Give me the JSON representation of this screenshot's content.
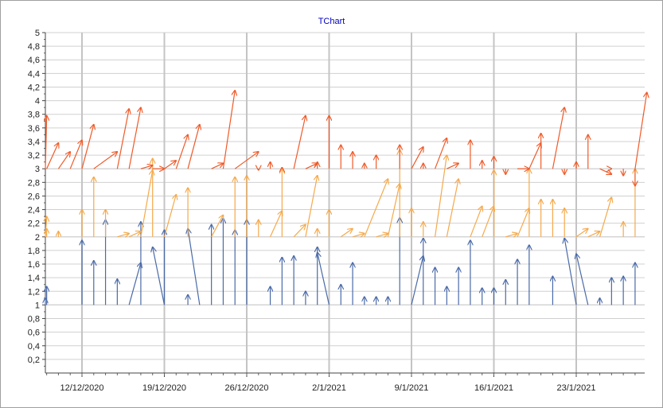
{
  "chart_data": {
    "type": "vector-arrows",
    "title": "TChart",
    "xlabel": "",
    "ylabel": "",
    "ylim": [
      0,
      5
    ],
    "y_ticks": [
      "0,2",
      "0,4",
      "0,6",
      "0,8",
      "1",
      "1,2",
      "1,4",
      "1,6",
      "1,8",
      "2",
      "2,2",
      "2,4",
      "2,6",
      "2,8",
      "3",
      "3,2",
      "3,4",
      "3,6",
      "3,8",
      "4",
      "4,2",
      "4,4",
      "4,6",
      "4,8",
      "5"
    ],
    "xlim": [
      "2020-12-08",
      "2021-01-26"
    ],
    "x_ticks": [
      {
        "date": "2020-12-12",
        "label": "12/12/2020"
      },
      {
        "date": "2020-12-19",
        "label": "19/12/2020"
      },
      {
        "date": "2020-12-26",
        "label": "26/12/2020"
      },
      {
        "date": "2021-01-02",
        "label": "2/1/2021"
      },
      {
        "date": "2021-01-09",
        "label": "9/1/2021"
      },
      {
        "date": "2021-01-16",
        "label": "16/1/2021"
      },
      {
        "date": "2021-01-23",
        "label": "23/1/2021"
      }
    ],
    "grid": true,
    "legend": "none",
    "series": [
      {
        "color": "#4a6aa8",
        "baseline": 1,
        "arrows": [
          [
            "2020-12-08",
            "2020-12-08",
            1.1
          ],
          [
            "2020-12-09",
            "2020-12-09",
            1.27
          ],
          [
            "2020-12-12",
            "2020-12-12",
            1.95
          ],
          [
            "2020-12-13",
            "2020-12-13",
            1.65
          ],
          [
            "2020-12-14",
            "2020-12-14",
            2.25
          ],
          [
            "2020-12-15",
            "2020-12-15",
            1.38
          ],
          [
            "2020-12-16",
            "2020-12-17",
            1.62
          ],
          [
            "2020-12-17",
            "2020-12-17",
            2.22
          ],
          [
            "2020-12-19",
            "2020-12-18",
            1.85
          ],
          [
            "2020-12-19",
            "2020-12-19",
            2.1
          ],
          [
            "2020-12-21",
            "2020-12-21",
            1.15
          ],
          [
            "2020-12-22",
            "2020-12-21",
            2.12
          ],
          [
            "2020-12-23",
            "2020-12-23",
            2.18
          ],
          [
            "2020-12-24",
            "2020-12-24",
            2.27
          ],
          [
            "2020-12-25",
            "2020-12-25",
            2.1
          ],
          [
            "2020-12-26",
            "2020-12-26",
            2.25
          ],
          [
            "2020-12-28",
            "2020-12-28",
            1.27
          ],
          [
            "2020-12-29",
            "2020-12-29",
            1.7
          ],
          [
            "2020-12-30",
            "2020-12-30",
            1.72
          ],
          [
            "2020-12-31",
            "2020-12-31",
            1.2
          ],
          [
            "2021-01-01",
            "2021-01-01",
            1.85
          ],
          [
            "2021-01-02",
            "2021-01-01",
            1.77
          ],
          [
            "2021-01-03",
            "2021-01-03",
            1.3
          ],
          [
            "2021-01-04",
            "2021-01-04",
            1.62
          ],
          [
            "2021-01-05",
            "2021-01-05",
            1.12
          ],
          [
            "2021-01-06",
            "2021-01-06",
            1.12
          ],
          [
            "2021-01-07",
            "2021-01-07",
            1.12
          ],
          [
            "2021-01-08",
            "2021-01-08",
            2.28
          ],
          [
            "2021-01-09",
            "2021-01-10",
            1.72
          ],
          [
            "2021-01-10",
            "2021-01-10",
            1.98
          ],
          [
            "2021-01-11",
            "2021-01-11",
            1.55
          ],
          [
            "2021-01-12",
            "2021-01-12",
            1.27
          ],
          [
            "2021-01-13",
            "2021-01-13",
            1.55
          ],
          [
            "2021-01-14",
            "2021-01-14",
            1.95
          ],
          [
            "2021-01-15",
            "2021-01-15",
            1.25
          ],
          [
            "2021-01-16",
            "2021-01-16",
            1.25
          ],
          [
            "2021-01-17",
            "2021-01-17",
            1.37
          ],
          [
            "2021-01-18",
            "2021-01-18",
            1.67
          ],
          [
            "2021-01-19",
            "2021-01-19",
            1.88
          ],
          [
            "2021-01-21",
            "2021-01-21",
            1.42
          ],
          [
            "2021-01-23",
            "2021-01-22",
            1.98
          ],
          [
            "2021-01-24",
            "2021-01-23",
            1.75
          ],
          [
            "2021-01-25",
            "2021-01-25",
            1.1
          ],
          [
            "2021-01-26",
            "2021-01-26",
            1.4
          ],
          [
            "2021-01-27",
            "2021-01-27",
            1.42
          ],
          [
            "2021-01-28",
            "2021-01-28",
            1.62
          ]
        ]
      },
      {
        "color": "#f5a94a",
        "baseline": 2,
        "arrows": [
          [
            "2020-12-08",
            "2020-12-09",
            2.3
          ],
          [
            "2020-12-09",
            "2020-12-09",
            2.12
          ],
          [
            "2020-12-10",
            "2020-12-10",
            2.08
          ],
          [
            "2020-12-12",
            "2020-12-12",
            2.4
          ],
          [
            "2020-12-13",
            "2020-12-13",
            2.88
          ],
          [
            "2020-12-14",
            "2020-12-14",
            2.4
          ],
          [
            "2020-12-15",
            "2020-12-16",
            2.05
          ],
          [
            "2020-12-16",
            "2020-12-17",
            2.08
          ],
          [
            "2020-12-17",
            "2020-12-18",
            2.98
          ],
          [
            "2020-12-18",
            "2020-12-18",
            3.15
          ],
          [
            "2020-12-19",
            "2020-12-20",
            2.62
          ],
          [
            "2020-12-21",
            "2020-12-21",
            2.72
          ],
          [
            "2020-12-23",
            "2020-12-24",
            2.32
          ],
          [
            "2020-12-25",
            "2020-12-25",
            2.88
          ],
          [
            "2020-12-26",
            "2020-12-26",
            2.9
          ],
          [
            "2020-12-27",
            "2020-12-27",
            2.25
          ],
          [
            "2020-12-28",
            "2020-12-29",
            2.38
          ],
          [
            "2020-12-29",
            "2020-12-29",
            3.0
          ],
          [
            "2020-12-30",
            "2020-12-31",
            2.18
          ],
          [
            "2020-12-31",
            "2021-01-01",
            2.9
          ],
          [
            "2021-01-01",
            "2021-01-01",
            2.12
          ],
          [
            "2021-01-02",
            "2021-01-02",
            2.4
          ],
          [
            "2021-01-03",
            "2021-01-04",
            2.12
          ],
          [
            "2021-01-04",
            "2021-01-05",
            2.05
          ],
          [
            "2021-01-05",
            "2021-01-07",
            2.85
          ],
          [
            "2021-01-06",
            "2021-01-07",
            2.05
          ],
          [
            "2021-01-07",
            "2021-01-08",
            2.78
          ],
          [
            "2021-01-08",
            "2021-01-08",
            3.28
          ],
          [
            "2021-01-09",
            "2021-01-09",
            2.42
          ],
          [
            "2021-01-10",
            "2021-01-10",
            2.22
          ],
          [
            "2021-01-11",
            "2021-01-12",
            3.2
          ],
          [
            "2021-01-12",
            "2021-01-13",
            2.85
          ],
          [
            "2021-01-14",
            "2021-01-15",
            2.45
          ],
          [
            "2021-01-15",
            "2021-01-16",
            2.45
          ],
          [
            "2021-01-16",
            "2021-01-16",
            2.98
          ],
          [
            "2021-01-17",
            "2021-01-18",
            2.05
          ],
          [
            "2021-01-18",
            "2021-01-19",
            2.42
          ],
          [
            "2021-01-19",
            "2021-01-19",
            3.0
          ],
          [
            "2021-01-20",
            "2021-01-20",
            2.55
          ],
          [
            "2021-01-21",
            "2021-01-21",
            2.55
          ],
          [
            "2021-01-22",
            "2021-01-22",
            2.42
          ],
          [
            "2021-01-23",
            "2021-01-24",
            2.12
          ],
          [
            "2021-01-24",
            "2021-01-25",
            2.08
          ],
          [
            "2021-01-25",
            "2021-01-26",
            2.58
          ],
          [
            "2021-01-27",
            "2021-01-27",
            2.22
          ],
          [
            "2021-01-28",
            "2021-01-28",
            3.0
          ]
        ]
      },
      {
        "color": "#ef5a28",
        "baseline": 3,
        "arrows": [
          [
            "2020-12-08",
            "2020-12-09",
            3.78
          ],
          [
            "2020-12-09",
            "2020-12-10",
            3.38
          ],
          [
            "2020-12-10",
            "2020-12-11",
            3.25
          ],
          [
            "2020-12-11",
            "2020-12-12",
            3.42
          ],
          [
            "2020-12-12",
            "2020-12-13",
            3.65
          ],
          [
            "2020-12-13",
            "2020-12-15",
            3.25
          ],
          [
            "2020-12-15",
            "2020-12-16",
            3.88
          ],
          [
            "2020-12-16",
            "2020-12-17",
            3.9
          ],
          [
            "2020-12-17",
            "2020-12-18",
            3.05
          ],
          [
            "2020-12-18",
            "2020-12-19",
            3.0
          ],
          [
            "2020-12-19",
            "2020-12-20",
            3.12
          ],
          [
            "2020-12-20",
            "2020-12-21",
            3.5
          ],
          [
            "2020-12-21",
            "2020-12-22",
            3.65
          ],
          [
            "2020-12-23",
            "2020-12-24",
            3.08
          ],
          [
            "2020-12-24",
            "2020-12-25",
            4.15
          ],
          [
            "2020-12-25",
            "2020-12-27",
            3.25
          ],
          [
            "2020-12-27",
            "2020-12-27",
            2.98
          ],
          [
            "2020-12-28",
            "2020-12-28",
            3.1
          ],
          [
            "2020-12-29",
            "2020-12-29",
            3.02
          ],
          [
            "2020-12-30",
            "2020-12-31",
            3.78
          ],
          [
            "2020-12-31",
            "2021-01-01",
            3.08
          ],
          [
            "2021-01-01",
            "2021-01-01",
            3.1
          ],
          [
            "2021-01-02",
            "2021-01-02",
            3.78
          ],
          [
            "2021-01-03",
            "2021-01-03",
            3.35
          ],
          [
            "2021-01-04",
            "2021-01-04",
            3.25
          ],
          [
            "2021-01-05",
            "2021-01-05",
            3.08
          ],
          [
            "2021-01-06",
            "2021-01-06",
            3.2
          ],
          [
            "2021-01-08",
            "2021-01-08",
            3.35
          ],
          [
            "2021-01-09",
            "2021-01-10",
            3.32
          ],
          [
            "2021-01-10",
            "2021-01-10",
            3.08
          ],
          [
            "2021-01-11",
            "2021-01-12",
            3.45
          ],
          [
            "2021-01-12",
            "2021-01-13",
            3.08
          ],
          [
            "2021-01-14",
            "2021-01-14",
            3.42
          ],
          [
            "2021-01-15",
            "2021-01-15",
            3.12
          ],
          [
            "2021-01-16",
            "2021-01-16",
            3.18
          ],
          [
            "2021-01-17",
            "2021-01-17",
            2.92
          ],
          [
            "2021-01-18",
            "2021-01-19",
            3.0
          ],
          [
            "2021-01-19",
            "2021-01-20",
            3.38
          ],
          [
            "2021-01-20",
            "2021-01-20",
            3.52
          ],
          [
            "2021-01-21",
            "2021-01-22",
            3.9
          ],
          [
            "2021-01-22",
            "2021-01-22",
            2.92
          ],
          [
            "2021-01-23",
            "2021-01-23",
            3.1
          ],
          [
            "2021-01-24",
            "2021-01-24",
            3.5
          ],
          [
            "2021-01-25",
            "2021-01-26",
            2.92
          ],
          [
            "2021-01-26",
            "2021-01-26",
            3.0
          ],
          [
            "2021-01-27",
            "2021-01-27",
            2.9
          ],
          [
            "2021-01-28",
            "2021-01-28",
            2.75
          ],
          [
            "2021-01-28",
            "2021-01-29",
            4.12
          ]
        ]
      }
    ]
  }
}
